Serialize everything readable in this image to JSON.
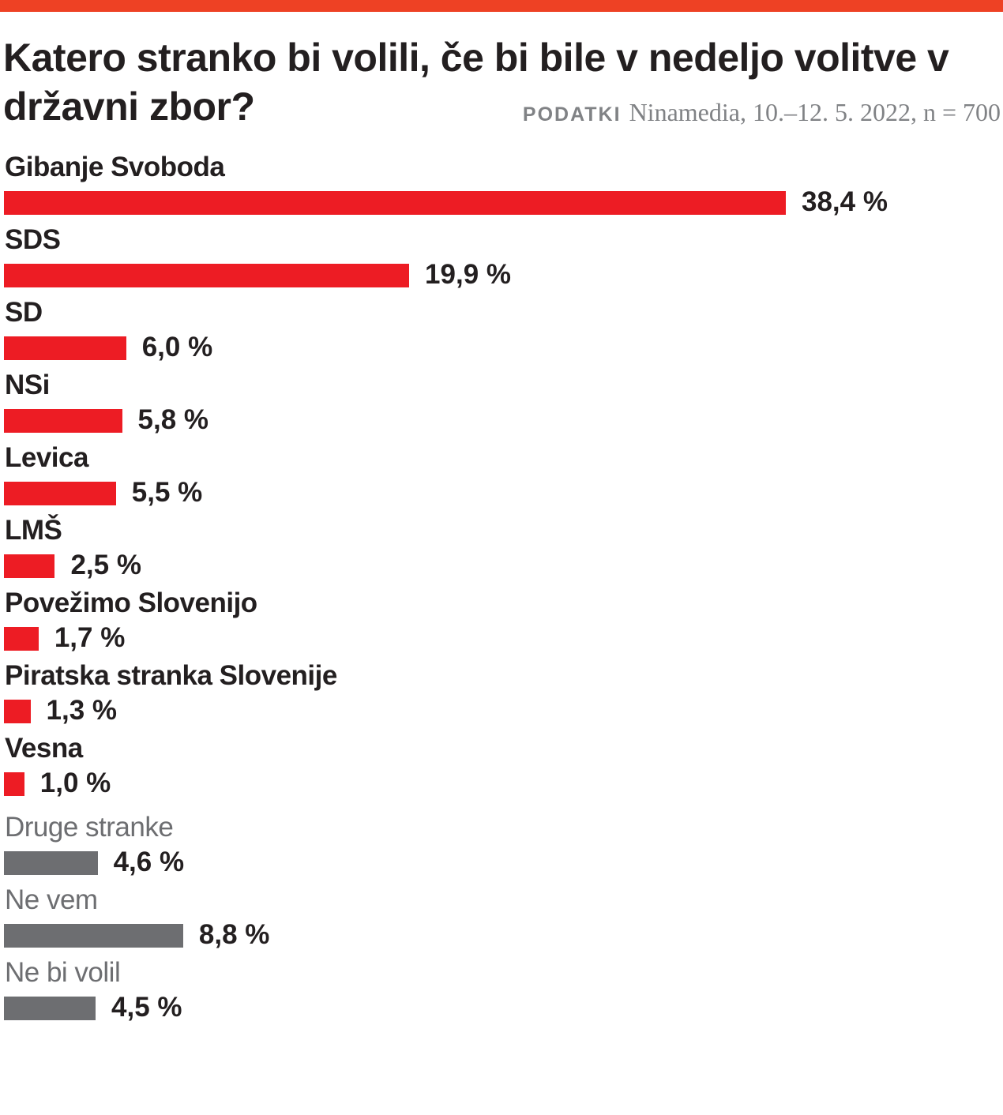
{
  "header": {
    "title": "Katero stranko bi volili, če bi bile v nedeljo volitve v državni zbor?",
    "source_label": "PODATKI",
    "source_text": "Ninamedia, 10.–12. 5. 2022, n = 700"
  },
  "colors": {
    "accent_top": "#ee4124",
    "party": "#ed1c24",
    "other": "#6d6e71"
  },
  "chart_data": {
    "type": "bar",
    "orientation": "horizontal",
    "unit": "%",
    "categories": [
      "Gibanje Svoboda",
      "SDS",
      "SD",
      "NSi",
      "Levica",
      "LMŠ",
      "Povežimo Slovenijo",
      "Piratska stranka Slovenije",
      "Vesna",
      "Druge stranke",
      "Ne vem",
      "Ne bi volil"
    ],
    "values": [
      38.4,
      19.9,
      6.0,
      5.8,
      5.5,
      2.5,
      1.7,
      1.3,
      1.0,
      4.6,
      8.8,
      4.5
    ],
    "value_labels": [
      "38,4 %",
      "19,9 %",
      "6,0 %",
      "5,8 %",
      "5,5 %",
      "2,5 %",
      "1,7 %",
      "1,3 %",
      "1,0 %",
      "4,6 %",
      "8,8 %",
      "4,5 %"
    ],
    "groups": [
      "party",
      "party",
      "party",
      "party",
      "party",
      "party",
      "party",
      "party",
      "party",
      "other",
      "other",
      "other"
    ],
    "grid": false,
    "legend": "none"
  }
}
